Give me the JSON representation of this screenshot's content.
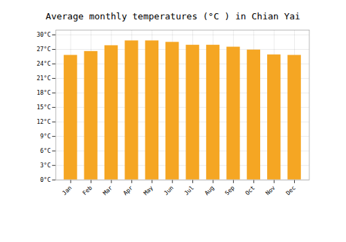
{
  "chart_data": {
    "type": "bar",
    "title": "Average monthly temperatures (°C ) in Chian Yai",
    "categories": [
      "Jan",
      "Feb",
      "Mar",
      "Apr",
      "May",
      "Jun",
      "Jul",
      "Aug",
      "Sep",
      "Oct",
      "Nov",
      "Dec"
    ],
    "values": [
      25.8,
      26.6,
      27.8,
      28.8,
      28.8,
      28.5,
      27.9,
      27.9,
      27.5,
      26.9,
      25.9,
      25.8
    ],
    "color": "#F5A623",
    "ylim": [
      0,
      31
    ],
    "yticks": [
      {
        "value": 0,
        "label": "0°C"
      },
      {
        "value": 3,
        "label": "3°C"
      },
      {
        "value": 6,
        "label": "6°C"
      },
      {
        "value": 9,
        "label": "9°C"
      },
      {
        "value": 12,
        "label": "12°C"
      },
      {
        "value": 15,
        "label": "15°C"
      },
      {
        "value": 18,
        "label": "18°C"
      },
      {
        "value": 21,
        "label": "21°C"
      },
      {
        "value": 24,
        "label": "24°C"
      },
      {
        "value": 27,
        "label": "27°C"
      },
      {
        "value": 30,
        "label": "30°C"
      }
    ],
    "grid": true
  }
}
